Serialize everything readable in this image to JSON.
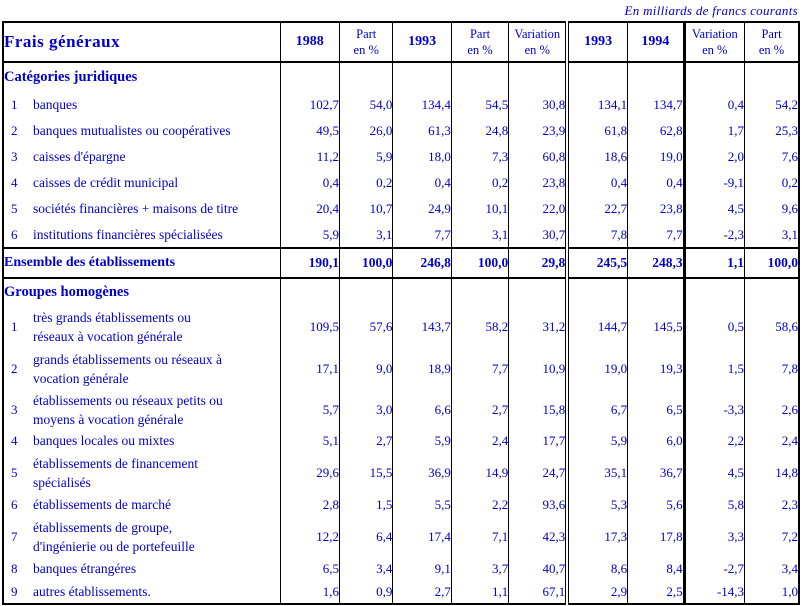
{
  "caption": "En milliards de francs courants",
  "table": {
    "title": "Frais généraux",
    "col_headers": [
      {
        "lines": [
          "1988"
        ],
        "year": true
      },
      {
        "lines": [
          "Part",
          "en %"
        ],
        "year": false
      },
      {
        "lines": [
          "1993"
        ],
        "year": true
      },
      {
        "lines": [
          "Part",
          "en %"
        ],
        "year": false
      },
      {
        "lines": [
          "Variation",
          "en %"
        ],
        "year": false
      },
      {
        "lines": [
          "1993"
        ],
        "year": true
      },
      {
        "lines": [
          "1994"
        ],
        "year": true
      },
      {
        "lines": [
          "Variation",
          "en %"
        ],
        "year": false
      },
      {
        "lines": [
          "Part",
          "en %"
        ],
        "year": false
      }
    ],
    "sections": [
      {
        "header": "Catégories juridiques",
        "rows": [
          {
            "num": "1",
            "label": "banques",
            "values": [
              "102,7",
              "54,0",
              "134,4",
              "54,5",
              "30,8",
              "134,1",
              "134,7",
              "0,4",
              "54,2"
            ]
          },
          {
            "num": "2",
            "label": "banques mutualistes ou coopératives",
            "values": [
              "49,5",
              "26,0",
              "61,3",
              "24,8",
              "23,9",
              "61,8",
              "62,8",
              "1,7",
              "25,3"
            ]
          },
          {
            "num": "3",
            "label": "caisses d'épargne",
            "values": [
              "11,2",
              "5,9",
              "18,0",
              "7,3",
              "60,8",
              "18,6",
              "19,0",
              "2,0",
              "7,6"
            ]
          },
          {
            "num": "4",
            "label": "caisses de crédit municipal",
            "values": [
              "0,4",
              "0,2",
              "0,4",
              "0,2",
              "23,8",
              "0,4",
              "0,4",
              "-9,1",
              "0,2"
            ]
          },
          {
            "num": "5",
            "label": "sociétés financières + maisons de titre",
            "values": [
              "20,4",
              "10,7",
              "24,9",
              "10,1",
              "22,0",
              "22,7",
              "23,8",
              "4,5",
              "9,6"
            ]
          },
          {
            "num": "6",
            "label": "institutions financières spécialisées",
            "values": [
              "5,9",
              "3,1",
              "7,7",
              "3,1",
              "30,7",
              "7,8",
              "7,7",
              "-2,3",
              "3,1"
            ]
          }
        ]
      },
      {
        "header": "Groupes homogènes",
        "rows": [
          {
            "num": "1",
            "label": "très grands établissements ou\nréseaux à vocation générale",
            "values": [
              "109,5",
              "57,6",
              "143,7",
              "58,2",
              "31,2",
              "144,7",
              "145,5",
              "0,5",
              "58,6"
            ]
          },
          {
            "num": "2",
            "label": "grands établissements ou réseaux à\nvocation générale",
            "values": [
              "17,1",
              "9,0",
              "18,9",
              "7,7",
              "10,9",
              "19,0",
              "19,3",
              "1,5",
              "7,8"
            ]
          },
          {
            "num": "3",
            "label": "établissements ou réseaux petits ou\nmoyens à vocation générale",
            "values": [
              "5,7",
              "3,0",
              "6,6",
              "2,7",
              "15,8",
              "6,7",
              "6,5",
              "-3,3",
              "2,6"
            ]
          },
          {
            "num": "4",
            "label": "banques locales ou mixtes",
            "values": [
              "5,1",
              "2,7",
              "5,9",
              "2,4",
              "17,7",
              "5,9",
              "6,0",
              "2,2",
              "2,4"
            ]
          },
          {
            "num": "5",
            "label": "établissements de financement\nspécialisés",
            "values": [
              "29,6",
              "15,5",
              "36,9",
              "14,9",
              "24,7",
              "35,1",
              "36,7",
              "4,5",
              "14,8"
            ]
          },
          {
            "num": "6",
            "label": "établissements de marché",
            "values": [
              "2,8",
              "1,5",
              "5,5",
              "2,2",
              "93,6",
              "5,3",
              "5,6",
              "5,8",
              "2,3"
            ]
          },
          {
            "num": "7",
            "label": "établissements de groupe,\nd'ingénierie ou de portefeuille",
            "values": [
              "12,2",
              "6,4",
              "17,4",
              "7,1",
              "42,3",
              "17,3",
              "17,8",
              "3,3",
              "7,2"
            ]
          },
          {
            "num": "8",
            "label": "banques étrangéres",
            "values": [
              "6,5",
              "3,4",
              "9,1",
              "3,7",
              "40,7",
              "8,6",
              "8,4",
              "-2,7",
              "3,4"
            ]
          },
          {
            "num": "9",
            "label": "autres établissements.",
            "values": [
              "1,6",
              "0,9",
              "2,7",
              "1,1",
              "67,1",
              "2,9",
              "2,5",
              "-14,3",
              "1,0"
            ]
          }
        ]
      }
    ],
    "total_row": {
      "label": "Ensemble des établissements",
      "values": [
        "190,1",
        "100,0",
        "246,8",
        "100,0",
        "29,8",
        "245,5",
        "248,3",
        "1,1",
        "100,0"
      ]
    }
  }
}
